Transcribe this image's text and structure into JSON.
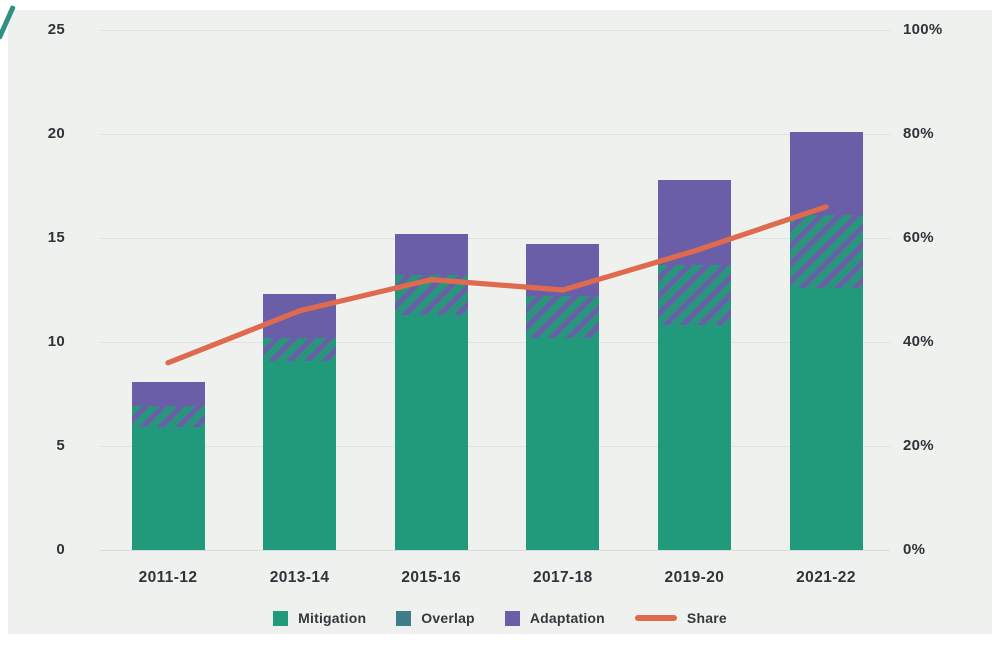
{
  "chart_data": {
    "type": "bar",
    "stacked": true,
    "title": "",
    "xlabel": "",
    "ylabel_left": "",
    "ylabel_right": "",
    "categories": [
      "2011-12",
      "2013-14",
      "2015-16",
      "2017-18",
      "2019-20",
      "2021-22"
    ],
    "series": [
      {
        "name": "Mitigation",
        "type": "bar",
        "color": "#219a7c",
        "pattern": "solid",
        "values": [
          5.9,
          9.1,
          11.3,
          10.2,
          10.8,
          12.6
        ]
      },
      {
        "name": "Overlap",
        "type": "bar",
        "color": "#3f7d8a",
        "pattern": "diagonal-hatch",
        "values": [
          1.0,
          1.1,
          1.9,
          2.0,
          2.9,
          3.5
        ]
      },
      {
        "name": "Adaptation",
        "type": "bar",
        "color": "#6a5ea8",
        "pattern": "solid",
        "values": [
          1.2,
          2.1,
          2.0,
          2.5,
          4.1,
          4.0
        ]
      },
      {
        "name": "Share",
        "type": "line",
        "axis": "right",
        "color": "#df6a4d",
        "values_percent": [
          36,
          46,
          52,
          50,
          57.5,
          66
        ]
      }
    ],
    "bar_totals": [
      8.1,
      12.3,
      15.2,
      14.7,
      17.8,
      20.1
    ],
    "y_left": {
      "min": 0,
      "max": 25,
      "ticks": [
        "0",
        "5",
        "10",
        "15",
        "20",
        "25"
      ]
    },
    "y_right": {
      "min": 0,
      "max": 100,
      "ticks": [
        "0%",
        "20%",
        "40%",
        "60%",
        "80%",
        "100%"
      ]
    },
    "grid": true,
    "legend_position": "bottom",
    "colors": {
      "background_card": "#eff1ef",
      "page": "#ffffff",
      "grid": "#dfe3e1",
      "axis_text": "#2f3439",
      "hatch_bg": "#2b947c",
      "hatch_stripe": "#6a5ea8",
      "corner_accent": "#2f9083"
    }
  }
}
